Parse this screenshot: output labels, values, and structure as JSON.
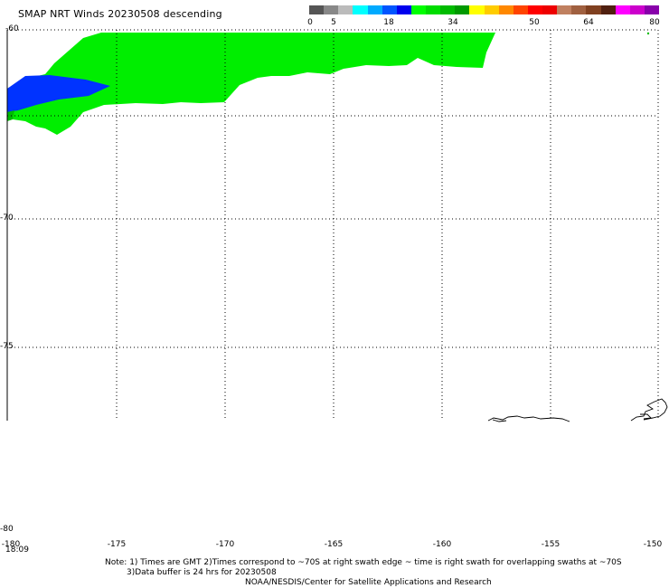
{
  "header": {
    "title": "SMAP NRT Winds  20230508 descending"
  },
  "colorbar": {
    "labels": [
      "0",
      "5",
      "18",
      "34",
      "50",
      "64",
      "80"
    ],
    "colors": [
      "#555555",
      "#888888",
      "#bbbbbb",
      "#00ffff",
      "#00aaff",
      "#0055ff",
      "#0000ee",
      "#00ff00",
      "#00dd00",
      "#00bb00",
      "#009900",
      "#ffff00",
      "#ffcc00",
      "#ff8800",
      "#ff4400",
      "#ff0000",
      "#ee0000",
      "#c08060",
      "#a06040",
      "#804020",
      "#502010",
      "#ff00ff",
      "#cc00cc",
      "#8800aa"
    ]
  },
  "map": {
    "lat_labels": [
      "-60",
      "-70",
      "-75",
      "-80"
    ],
    "lon_labels": [
      "-180",
      "-175",
      "-170",
      "-165",
      "-160",
      "-155",
      "-150"
    ],
    "time_label": "18:09",
    "swath_colors": {
      "moderate": "#00ee00",
      "light": "#0033ff",
      "strong": "#00bb00"
    }
  },
  "footer": {
    "note_line1": "Note: 1) Times are GMT 2)Times correspond to ~70S at right swath edge ~ time is right swath for overlapping swaths at ~70S",
    "note_line2": "3)Data buffer is 24 hrs for 20230508",
    "credit": "NOAA/NESDIS/Center for Satellite Applications and Research"
  }
}
